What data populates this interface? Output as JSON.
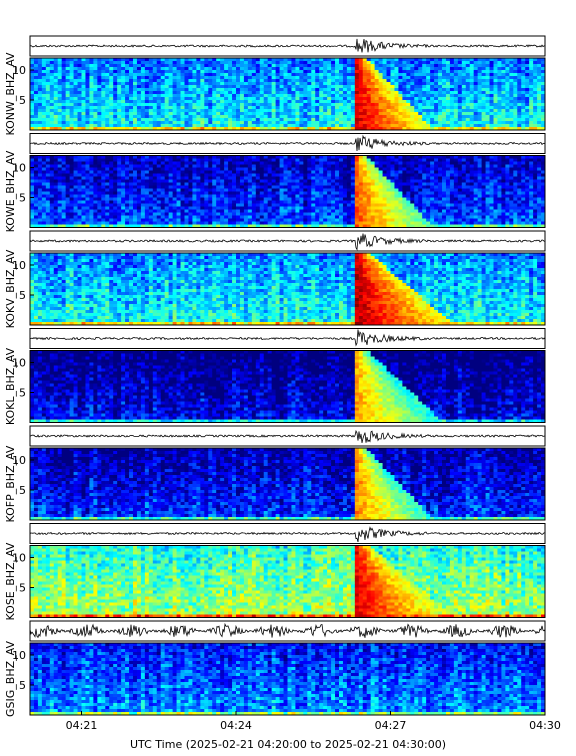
{
  "chart_data": {
    "type": "heatmap",
    "title": "",
    "xlabel": "UTC Time (2025-02-21 04:20:00 to 2025-02-21 04:30:00)",
    "ylabel": "",
    "x_range": [
      "04:20",
      "04:30"
    ],
    "x_ticks": [
      "04:21",
      "04:24",
      "04:27",
      "04:30"
    ],
    "y_range": [
      0,
      12
    ],
    "y_ticks": [
      "5",
      "10"
    ],
    "event_time": "04:26:20",
    "colormap": "jet",
    "series": [
      {
        "name": "KONW_BHZ_AV",
        "background": 0.38,
        "event": 0.92,
        "coda_minutes": 1.5
      },
      {
        "name": "KOWE_BHZ_AV",
        "background": 0.2,
        "event": 0.8,
        "coda_minutes": 1.5
      },
      {
        "name": "KOKV_BHZ_AV",
        "background": 0.4,
        "event": 0.95,
        "coda_minutes": 1.9
      },
      {
        "name": "KOKL_BHZ_AV",
        "background": 0.12,
        "event": 0.72,
        "coda_minutes": 1.7
      },
      {
        "name": "KOFP_BHZ_AV",
        "background": 0.18,
        "event": 0.75,
        "coda_minutes": 1.5
      },
      {
        "name": "KOSE_BHZ_AV",
        "background": 0.55,
        "event": 0.9,
        "coda_minutes": 1.9
      },
      {
        "name": "GSIG_BHZ_AV",
        "background": 0.28,
        "event": 0.3,
        "coda_minutes": 0
      }
    ]
  }
}
